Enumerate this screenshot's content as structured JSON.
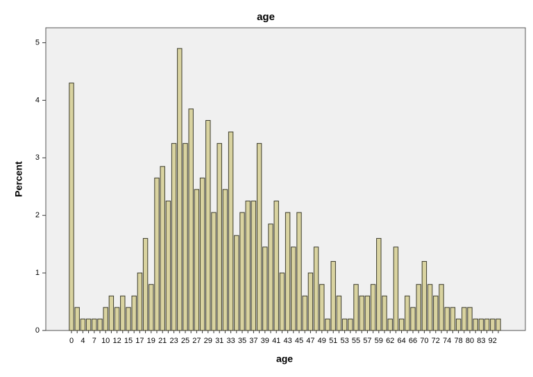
{
  "chart_data": {
    "type": "bar",
    "title": "age",
    "x_label": "age",
    "y_label": "Percent",
    "categories": [
      "0",
      null,
      "4",
      null,
      "7",
      null,
      "10",
      null,
      "12",
      null,
      "15",
      null,
      "17",
      null,
      "19",
      null,
      "21",
      null,
      "23",
      null,
      "25",
      null,
      "27",
      null,
      "29",
      null,
      "31",
      null,
      "33",
      null,
      "35",
      null,
      "37",
      null,
      "39",
      null,
      "41",
      null,
      "43",
      null,
      "45",
      null,
      "47",
      null,
      "49",
      null,
      "51",
      null,
      "53",
      null,
      "55",
      null,
      "57",
      null,
      "59",
      null,
      "62",
      null,
      "64",
      null,
      "66",
      null,
      "70",
      null,
      "72",
      null,
      "74",
      null,
      "78",
      null,
      "80",
      null,
      "83",
      null,
      "92",
      null
    ],
    "values": [
      4.3,
      0.4,
      0.2,
      0.2,
      0.2,
      0.2,
      0.4,
      0.6,
      0.4,
      0.6,
      0.4,
      0.6,
      1.0,
      1.6,
      0.8,
      2.65,
      2.85,
      2.25,
      3.25,
      4.9,
      3.25,
      3.85,
      2.45,
      2.65,
      3.65,
      2.05,
      3.25,
      2.45,
      3.45,
      1.65,
      2.05,
      2.25,
      2.25,
      3.25,
      1.45,
      1.85,
      2.25,
      1.0,
      2.05,
      1.45,
      2.05,
      0.6,
      1.0,
      1.45,
      0.8,
      0.2,
      1.2,
      0.6,
      0.2,
      0.2,
      0.8,
      0.6,
      0.6,
      0.8,
      1.6,
      0.6,
      0.2,
      1.45,
      0.2,
      0.6,
      0.4,
      0.8,
      1.2,
      0.8,
      0.6,
      0.8,
      0.4,
      0.4,
      0.2,
      0.4,
      0.4,
      0.2,
      0.2,
      0.2,
      0.2,
      0.2
    ],
    "color": "#d9d3a0",
    "ylim": [
      0,
      5.26
    ],
    "yticks": [
      0,
      1,
      2,
      3,
      4,
      5
    ]
  }
}
